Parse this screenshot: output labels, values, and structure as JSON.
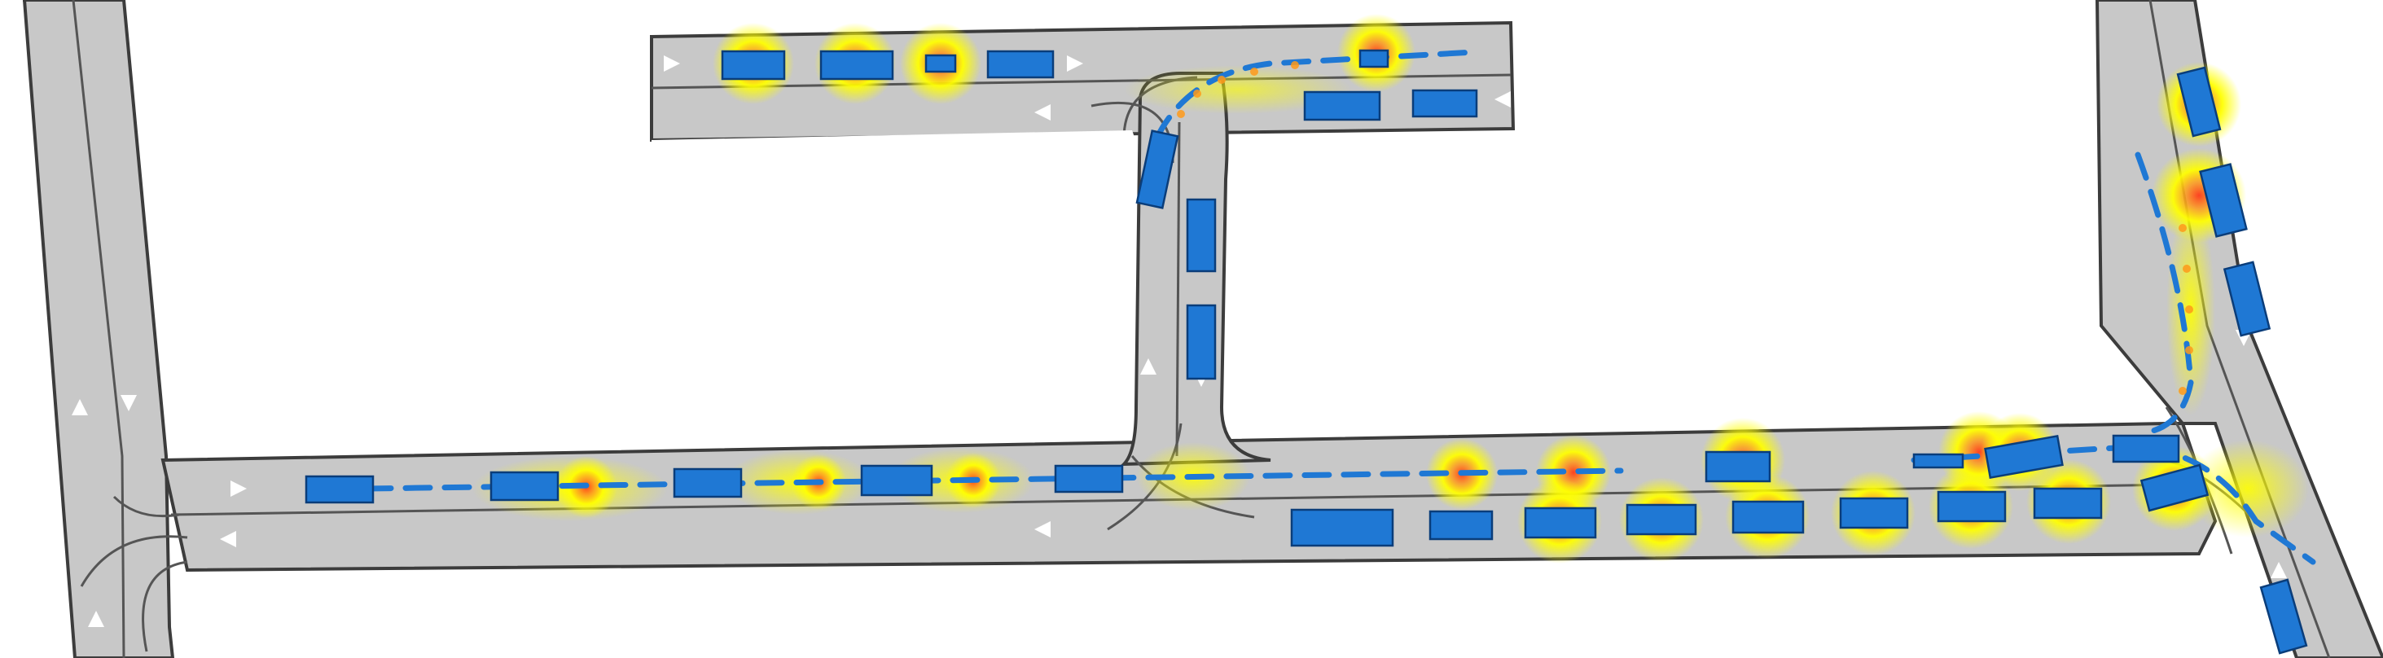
{
  "colors": {
    "background": "#ffffff",
    "road_fill": "#c8c8c8",
    "road_edge": "#3c3c3c",
    "lane_divider": "#555555",
    "vehicle_fill": "#1f78d4",
    "vehicle_stroke": "#0a3d7a",
    "highlight_outer": "#ffff00",
    "highlight_inner": "#ff9a1a",
    "highlight_core": "#ff3b1a",
    "trajectory": "#1f78d4",
    "lane_arrow": "#ffffff"
  },
  "icons": {
    "vehicle": "vehicle-icon",
    "lane_arrow": "lane-direction-arrow-icon",
    "attention": "attention-highlight-icon",
    "trajectory": "predicted-trajectory-line"
  },
  "scene": {
    "kind": "top-down traffic simulation",
    "vehicle_count": 36,
    "highlighted_vehicle_count": 22
  }
}
